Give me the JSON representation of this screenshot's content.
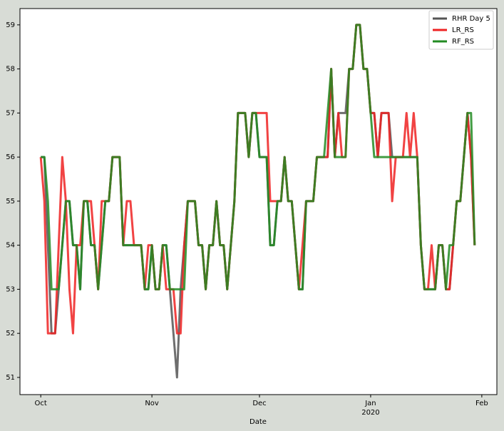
{
  "chart_data": {
    "type": "line",
    "xlabel": "Date",
    "x": [
      0,
      1,
      2,
      3,
      4,
      5,
      6,
      7,
      8,
      9,
      10,
      11,
      12,
      13,
      14,
      15,
      16,
      17,
      18,
      19,
      20,
      21,
      22,
      23,
      24,
      25,
      26,
      27,
      28,
      29,
      30,
      31,
      32,
      33,
      34,
      35,
      36,
      37,
      38,
      39,
      40,
      41,
      42,
      43,
      44,
      45,
      46,
      47,
      48,
      49,
      50,
      51,
      52,
      53,
      54,
      55,
      56,
      57,
      58,
      59,
      60,
      61,
      62,
      63,
      64,
      65,
      66,
      67,
      68,
      69,
      70,
      71,
      72,
      73,
      74,
      75,
      76,
      77,
      78,
      79,
      80,
      81,
      82,
      83,
      84,
      85,
      86,
      87,
      88,
      89,
      90,
      91,
      92,
      93,
      94,
      95,
      96,
      97,
      98,
      99,
      100,
      101,
      102,
      103,
      104,
      105,
      106,
      107,
      108,
      109,
      110,
      111,
      112,
      113,
      114,
      115,
      116,
      117,
      118,
      119,
      120,
      121
    ],
    "series": [
      {
        "name": "RHR Day 5",
        "color": "#555555",
        "values": [
          56,
          56,
          54,
          52,
          52,
          53,
          54,
          55,
          55,
          54,
          54,
          53,
          55,
          55,
          54,
          54,
          53,
          54,
          55,
          55,
          56,
          56,
          56,
          54,
          54,
          54,
          54,
          54,
          54,
          53,
          53,
          54,
          53,
          53,
          54,
          54,
          53,
          52,
          51,
          53,
          54,
          55,
          55,
          55,
          54,
          54,
          53,
          54,
          54,
          55,
          54,
          54,
          53,
          54,
          55,
          57,
          57,
          57,
          56,
          57,
          57,
          56,
          56,
          56,
          54,
          54,
          55,
          55,
          56,
          55,
          55,
          54,
          53,
          53,
          55,
          55,
          55,
          56,
          56,
          56,
          56,
          58,
          56,
          57,
          57,
          57,
          58,
          58,
          59,
          59,
          58,
          58,
          57,
          57,
          56,
          57,
          57,
          57,
          56,
          56,
          56,
          56,
          56,
          56,
          56,
          56,
          54,
          53,
          53,
          53,
          53,
          54,
          54,
          53,
          53,
          54,
          55,
          55,
          56,
          57,
          56,
          54
        ]
      },
      {
        "name": "LR_RS",
        "color": "#ee2222",
        "values": [
          56,
          55,
          52,
          52,
          52,
          54,
          56,
          55,
          53,
          52,
          54,
          54,
          55,
          55,
          55,
          54,
          53,
          55,
          55,
          55,
          56,
          56,
          56,
          54,
          55,
          55,
          54,
          54,
          54,
          53,
          54,
          54,
          53,
          53,
          54,
          53,
          53,
          53,
          52,
          52,
          54,
          55,
          55,
          55,
          54,
          54,
          53,
          54,
          54,
          55,
          54,
          54,
          53,
          54,
          55,
          57,
          57,
          57,
          56,
          57,
          57,
          57,
          57,
          57,
          55,
          55,
          55,
          55,
          56,
          55,
          55,
          54,
          53,
          54,
          55,
          55,
          55,
          56,
          56,
          56,
          56,
          58,
          56,
          57,
          56,
          56,
          58,
          58,
          59,
          59,
          58,
          58,
          57,
          57,
          56,
          57,
          57,
          57,
          55,
          56,
          56,
          56,
          57,
          56,
          57,
          56,
          54,
          53,
          53,
          54,
          53,
          54,
          54,
          53,
          53,
          54,
          55,
          55,
          56,
          57,
          56,
          54
        ]
      },
      {
        "name": "RF_RS",
        "color": "#228b22",
        "values": [
          56,
          56,
          55,
          53,
          53,
          53,
          54,
          55,
          55,
          54,
          54,
          53,
          55,
          55,
          54,
          54,
          53,
          54,
          55,
          55,
          56,
          56,
          56,
          54,
          54,
          54,
          54,
          54,
          54,
          53,
          53,
          54,
          53,
          53,
          54,
          54,
          53,
          53,
          53,
          53,
          53,
          55,
          55,
          55,
          54,
          54,
          53,
          54,
          54,
          55,
          54,
          54,
          53,
          54,
          55,
          57,
          57,
          57,
          56,
          57,
          57,
          56,
          56,
          56,
          54,
          54,
          55,
          55,
          56,
          55,
          55,
          54,
          53,
          53,
          55,
          55,
          55,
          56,
          56,
          56,
          57,
          58,
          56,
          56,
          56,
          56,
          58,
          58,
          59,
          59,
          58,
          58,
          57,
          56,
          56,
          56,
          56,
          56,
          56,
          56,
          56,
          56,
          56,
          56,
          56,
          56,
          54,
          53,
          53,
          53,
          53,
          54,
          54,
          53,
          54,
          54,
          55,
          55,
          56,
          57,
          57,
          54
        ]
      }
    ],
    "xlim": [
      -5.8,
      127.2
    ],
    "xticks": [
      {
        "value": 0,
        "label": "Oct"
      },
      {
        "value": 31,
        "label": "Nov"
      },
      {
        "value": 61,
        "label": "Dec"
      },
      {
        "value": 92,
        "label": "Jan\n2020"
      },
      {
        "value": 123,
        "label": "Feb"
      }
    ],
    "ylim": [
      50.61,
      59.37
    ],
    "yticks": [
      51,
      52,
      53,
      54,
      55,
      56,
      57,
      58,
      59
    ],
    "legend": "upper right"
  }
}
